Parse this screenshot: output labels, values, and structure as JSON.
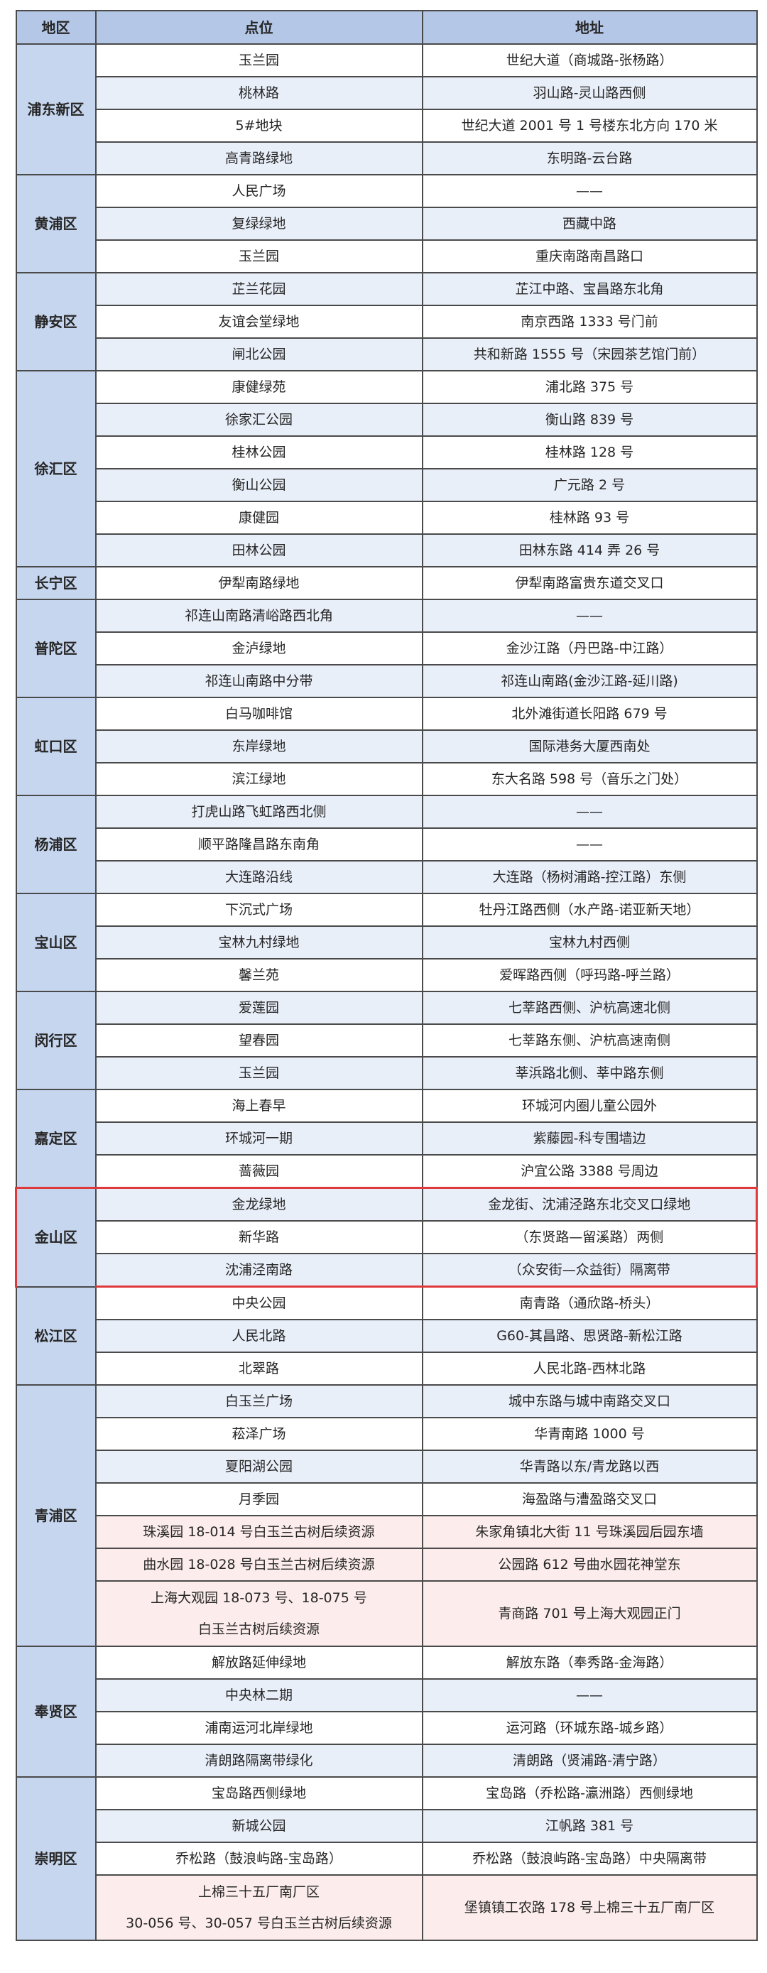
{
  "header": {
    "district": "地区",
    "point": "点位",
    "address": "地址"
  },
  "colors": {
    "header_bg": "#b4c7e7",
    "district_bg": "#c6d6ef",
    "alt_row_bg": "#e9eff9",
    "pink_row_bg": "#fcedec",
    "highlight_border": "#e0393b"
  },
  "districts": [
    {
      "name": "浦东新区",
      "rows": [
        {
          "point": "玉兰园",
          "address": "世纪大道（商城路-张杨路）"
        },
        {
          "point": "桃林路",
          "address": "羽山路-灵山路西侧"
        },
        {
          "point": "5#地块",
          "address": "世纪大道 2001 号 1 号楼东北方向 170 米"
        },
        {
          "point": "高青路绿地",
          "address": "东明路-云台路"
        }
      ]
    },
    {
      "name": "黄浦区",
      "rows": [
        {
          "point": "人民广场",
          "address": "——"
        },
        {
          "point": "复绿绿地",
          "address": "西藏中路"
        },
        {
          "point": "玉兰园",
          "address": "重庆南路南昌路口"
        }
      ]
    },
    {
      "name": "静安区",
      "rows": [
        {
          "point": "芷兰花园",
          "address": "芷江中路、宝昌路东北角"
        },
        {
          "point": "友谊会堂绿地",
          "address": "南京西路 1333 号门前"
        },
        {
          "point": "闸北公园",
          "address": "共和新路 1555 号（宋园茶艺馆门前）"
        }
      ]
    },
    {
      "name": "徐汇区",
      "rows": [
        {
          "point": "康健绿苑",
          "address": "浦北路 375 号"
        },
        {
          "point": "徐家汇公园",
          "address": "衡山路 839 号"
        },
        {
          "point": "桂林公园",
          "address": "桂林路 128 号"
        },
        {
          "point": "衡山公园",
          "address": "广元路 2 号"
        },
        {
          "point": "康健园",
          "address": "桂林路 93 号"
        },
        {
          "point": "田林公园",
          "address": "田林东路 414 弄 26 号"
        }
      ]
    },
    {
      "name": "长宁区",
      "rows": [
        {
          "point": "伊犁南路绿地",
          "address": "伊犁南路富贵东道交叉口"
        }
      ]
    },
    {
      "name": "普陀区",
      "rows": [
        {
          "point": "祁连山南路清峪路西北角",
          "address": "——"
        },
        {
          "point": "金泸绿地",
          "address": "金沙江路（丹巴路-中江路）"
        },
        {
          "point": "祁连山南路中分带",
          "address": "祁连山南路(金沙江路-延川路)"
        }
      ]
    },
    {
      "name": "虹口区",
      "rows": [
        {
          "point": "白马咖啡馆",
          "address": "北外滩街道长阳路 679 号"
        },
        {
          "point": "东岸绿地",
          "address": "国际港务大厦西南处"
        },
        {
          "point": "滨江绿地",
          "address": "东大名路 598 号（音乐之门处）"
        }
      ]
    },
    {
      "name": "杨浦区",
      "rows": [
        {
          "point": "打虎山路飞虹路西北侧",
          "address": "——"
        },
        {
          "point": "顺平路隆昌路东南角",
          "address": "——"
        },
        {
          "point": "大连路沿线",
          "address": "大连路（杨树浦路-控江路）东侧"
        }
      ]
    },
    {
      "name": "宝山区",
      "rows": [
        {
          "point": "下沉式广场",
          "address": "牡丹江路西侧（水产路-诺亚新天地）"
        },
        {
          "point": "宝林九村绿地",
          "address": "宝林九村西侧"
        },
        {
          "point": "馨兰苑",
          "address": "爱晖路西侧（呼玛路-呼兰路）"
        }
      ]
    },
    {
      "name": "闵行区",
      "rows": [
        {
          "point": "爱莲园",
          "address": "七莘路西侧、沪杭高速北侧"
        },
        {
          "point": "望春园",
          "address": "七莘路东侧、沪杭高速南侧"
        },
        {
          "point": "玉兰园",
          "address": "莘浜路北侧、莘中路东侧"
        }
      ]
    },
    {
      "name": "嘉定区",
      "rows": [
        {
          "point": "海上春早",
          "address": "环城河内圈儿童公园外"
        },
        {
          "point": "环城河一期",
          "address": "紫藤园-科专围墙边"
        },
        {
          "point": "蔷薇园",
          "address": "沪宜公路 3388 号周边"
        }
      ]
    },
    {
      "name": "金山区",
      "highlighted": true,
      "rows": [
        {
          "point": "金龙绿地",
          "address": "金龙街、沈浦泾路东北交叉口绿地"
        },
        {
          "point": "新华路",
          "address": "（东贤路—留溪路）两侧"
        },
        {
          "point": "沈浦泾南路",
          "address": "（众安街—众益街）隔离带"
        }
      ]
    },
    {
      "name": "松江区",
      "rows": [
        {
          "point": "中央公园",
          "address": "南青路（通欣路-桥头）"
        },
        {
          "point": "人民北路",
          "address": "G60-其昌路、思贤路-新松江路"
        },
        {
          "point": "北翠路",
          "address": "人民北路-西林北路"
        }
      ]
    },
    {
      "name": "青浦区",
      "rows": [
        {
          "point": "白玉兰广场",
          "address": "城中东路与城中南路交叉口"
        },
        {
          "point": "菘泽广场",
          "address": "华青南路 1000 号"
        },
        {
          "point": "夏阳湖公园",
          "address": "华青路以东/青龙路以西"
        },
        {
          "point": "月季园",
          "address": "海盈路与漕盈路交叉口"
        },
        {
          "point": "珠溪园 18-014 号白玉兰古树后续资源",
          "address": "朱家角镇北大街 11 号珠溪园后园东墙",
          "pink": true
        },
        {
          "point": "曲水园 18-028 号白玉兰古树后续资源",
          "address": "公园路 612 号曲水园花神堂东",
          "pink": true
        },
        {
          "point": "上海大观园 18-073 号、18-075 号\n白玉兰古树后续资源",
          "address": "青商路 701 号上海大观园正门",
          "pink": true
        }
      ]
    },
    {
      "name": "奉贤区",
      "rows": [
        {
          "point": "解放路延伸绿地",
          "address": "解放东路（奉秀路-金海路）"
        },
        {
          "point": "中央林二期",
          "address": "——"
        },
        {
          "point": "浦南运河北岸绿地",
          "address": "运河路（环城东路-城乡路）"
        },
        {
          "point": "清朗路隔离带绿化",
          "address": "清朗路（贤浦路-清宁路）"
        }
      ]
    },
    {
      "name": "崇明区",
      "rows": [
        {
          "point": "宝岛路西侧绿地",
          "address": "宝岛路（乔松路-瀛洲路）西侧绿地"
        },
        {
          "point": "新城公园",
          "address": "江帆路 381 号"
        },
        {
          "point": "乔松路（鼓浪屿路-宝岛路）",
          "address": "乔松路（鼓浪屿路-宝岛路）中央隔离带"
        },
        {
          "point": "上棉三十五厂南厂区\n30-056 号、30-057 号白玉兰古树后续资源",
          "address": "堡镇镇工农路 178 号上棉三十五厂南厂区",
          "pink": true
        }
      ]
    }
  ]
}
